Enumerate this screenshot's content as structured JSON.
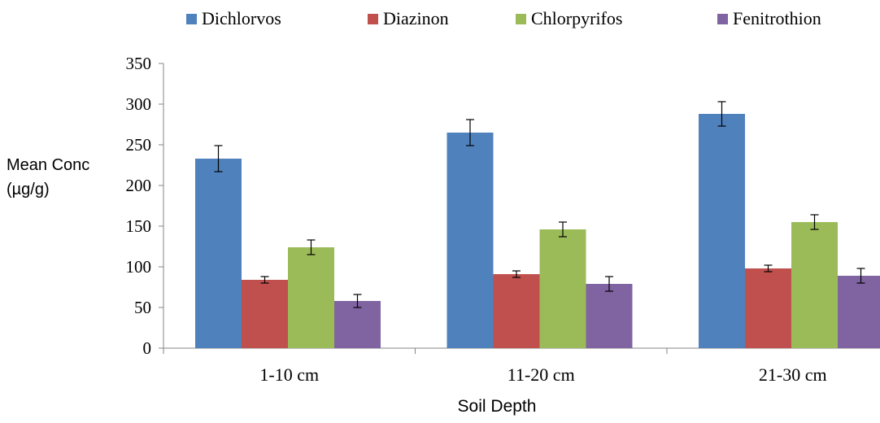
{
  "chart_data": {
    "type": "bar",
    "title": "",
    "xlabel": "Soil Depth",
    "ylabel_lines": [
      "Mean Conc",
      "(µg/g)"
    ],
    "categories": [
      "1-10 cm",
      "11-20 cm",
      "21-30 cm"
    ],
    "ylim": [
      0,
      350
    ],
    "yticks": [
      0,
      50,
      100,
      150,
      200,
      250,
      300,
      350
    ],
    "grid": false,
    "legend_position": "top",
    "error_bars": true,
    "series": [
      {
        "name": "Dichlorvos",
        "color": "#4F81BD",
        "values": [
          233,
          265,
          288
        ],
        "errors": [
          16,
          16,
          15
        ]
      },
      {
        "name": "Diazinon",
        "color": "#C0504D",
        "values": [
          84,
          91,
          98
        ],
        "errors": [
          4,
          4,
          4
        ]
      },
      {
        "name": "Chlorpyrifos",
        "color": "#9BBB59",
        "values": [
          124,
          146,
          155
        ],
        "errors": [
          9,
          9,
          9
        ]
      },
      {
        "name": "Fenitrothion",
        "color": "#8064A2",
        "values": [
          58,
          79,
          89
        ],
        "errors": [
          8,
          9,
          9
        ]
      }
    ]
  }
}
